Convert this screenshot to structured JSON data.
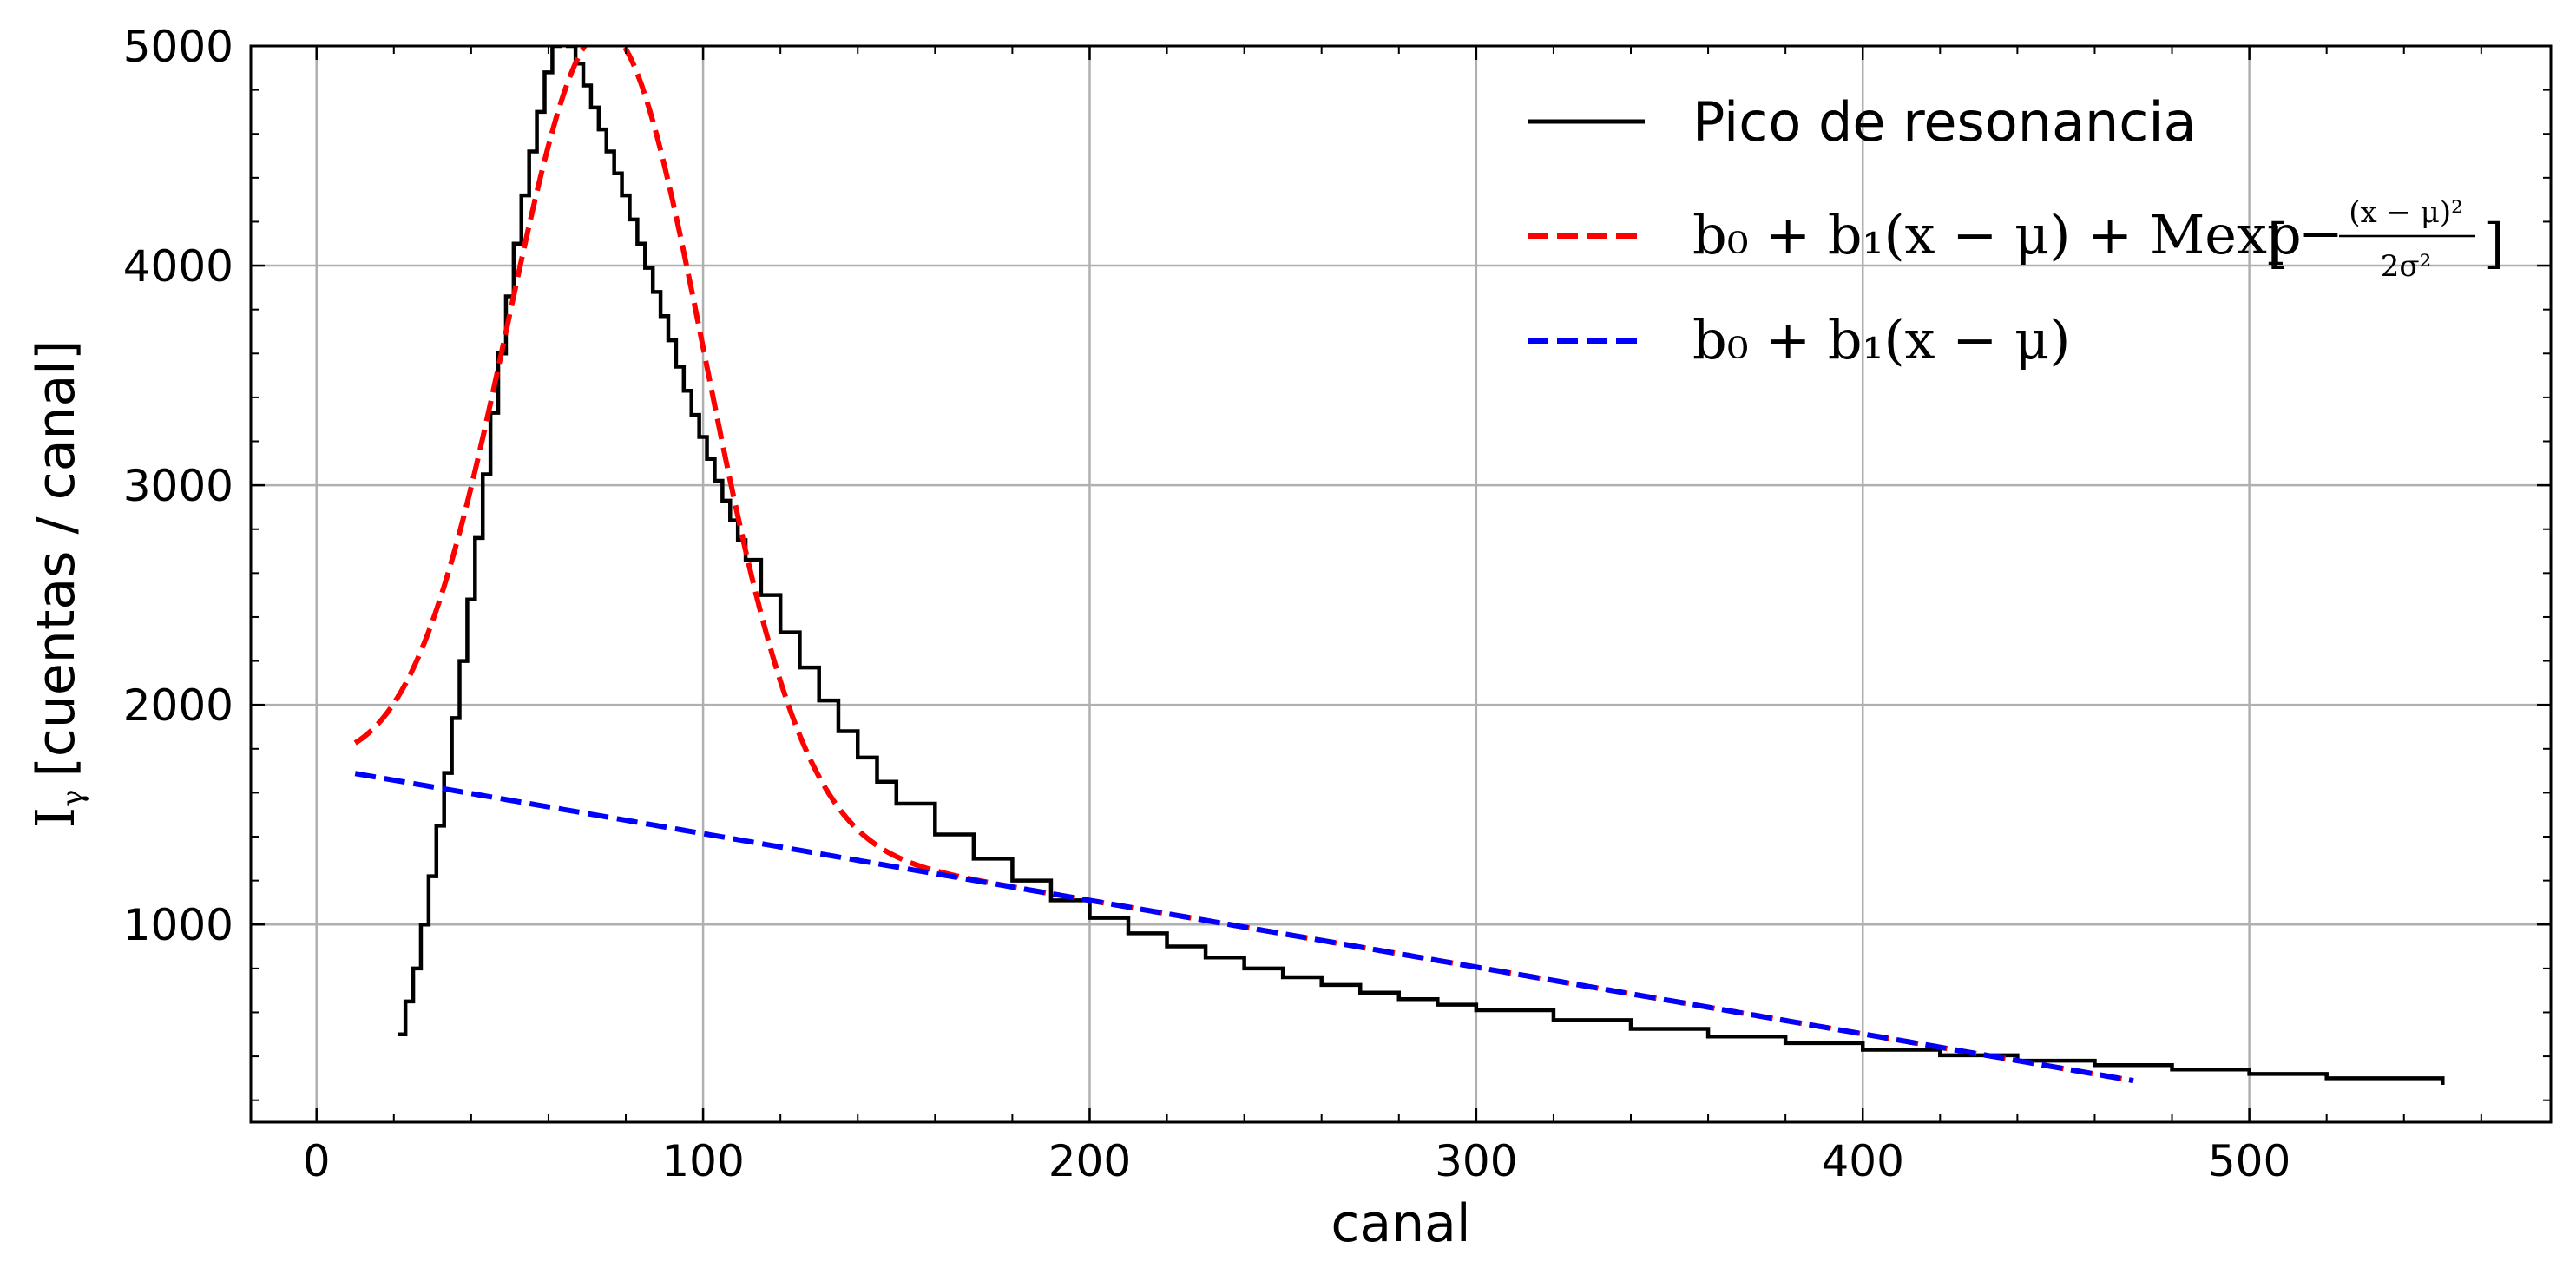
{
  "chart_data": {
    "type": "line",
    "xlabel": "canal",
    "ylabel": "I",
    "ylabel_subscript": "γ",
    "ylabel_suffix": "[cuentas / canal]",
    "xlim": [
      -17,
      578
    ],
    "ylim": [
      100,
      5000
    ],
    "x_ticks": [
      0,
      100,
      200,
      300,
      400,
      500
    ],
    "x_tick_labels": [
      "0",
      "100",
      "200",
      "300",
      "400",
      "500"
    ],
    "y_ticks": [
      1000,
      2000,
      3000,
      4000,
      5000
    ],
    "y_tick_labels": [
      "1000",
      "2000",
      "3000",
      "4000",
      "5000"
    ],
    "grid": true,
    "legend_position": "top-right",
    "series": [
      {
        "name": "Pico de resonancia",
        "color": "#000000",
        "style": "step",
        "x": [
          21,
          23,
          25,
          27,
          29,
          31,
          33,
          35,
          37,
          39,
          41,
          43,
          45,
          47,
          49,
          51,
          53,
          55,
          57,
          59,
          61,
          63,
          65,
          67,
          69,
          71,
          73,
          75,
          77,
          79,
          81,
          83,
          85,
          87,
          89,
          91,
          93,
          95,
          97,
          99,
          101,
          103,
          105,
          107,
          109,
          111,
          115,
          120,
          125,
          130,
          135,
          140,
          145,
          150,
          160,
          170,
          180,
          190,
          200,
          210,
          220,
          230,
          240,
          250,
          260,
          270,
          280,
          290,
          300,
          320,
          340,
          360,
          380,
          400,
          420,
          440,
          460,
          480,
          500,
          520,
          550
        ],
        "y": [
          500,
          650,
          800,
          1000,
          1220,
          1450,
          1690,
          1940,
          2200,
          2480,
          2760,
          3050,
          3330,
          3600,
          3860,
          4100,
          4320,
          4520,
          4700,
          4880,
          5000,
          5050,
          5000,
          4920,
          4820,
          4720,
          4620,
          4520,
          4420,
          4320,
          4210,
          4100,
          3990,
          3880,
          3770,
          3660,
          3540,
          3430,
          3320,
          3220,
          3120,
          3020,
          2930,
          2840,
          2750,
          2660,
          2500,
          2330,
          2170,
          2020,
          1880,
          1760,
          1650,
          1550,
          1410,
          1300,
          1200,
          1110,
          1030,
          960,
          900,
          850,
          800,
          760,
          725,
          690,
          660,
          635,
          610,
          565,
          525,
          490,
          460,
          430,
          405,
          380,
          360,
          340,
          320,
          300,
          270
        ]
      },
      {
        "name": "b0 + b1(x − μ) + Mexp[−(x − μ)²/2σ²]",
        "color": "#ff0000",
        "style": "dashed",
        "model": "gauss_plus_linear",
        "x_range": [
          10,
          470
        ],
        "b0": 1490,
        "b1": -3.04,
        "mu": 75,
        "M": 3580,
        "sigma": 25.5
      },
      {
        "name": "b0 + b1(x − μ)",
        "color": "#0000ff",
        "style": "dashed",
        "model": "linear",
        "x_range": [
          10,
          470
        ],
        "b0": 1490,
        "b1": -3.04,
        "mu": 75
      }
    ]
  },
  "legend": {
    "entries": [
      {
        "label": "Pico de resonancia",
        "color": "#000000",
        "dash": false
      },
      {
        "label": "b₀ + b₁(x − μ) + Mexp[−(x − μ)²/2σ²]",
        "color": "#ff0000",
        "dash": true
      },
      {
        "label": "b₀ + b₁(x − μ)",
        "color": "#0000ff",
        "dash": true
      }
    ],
    "math_red": {
      "lead": "b₀ + b₁(x − μ) + Mexp",
      "frac_num": "(x − μ)²",
      "frac_den": "2σ²"
    },
    "math_blue": "b₀ + b₁(x − μ)"
  }
}
